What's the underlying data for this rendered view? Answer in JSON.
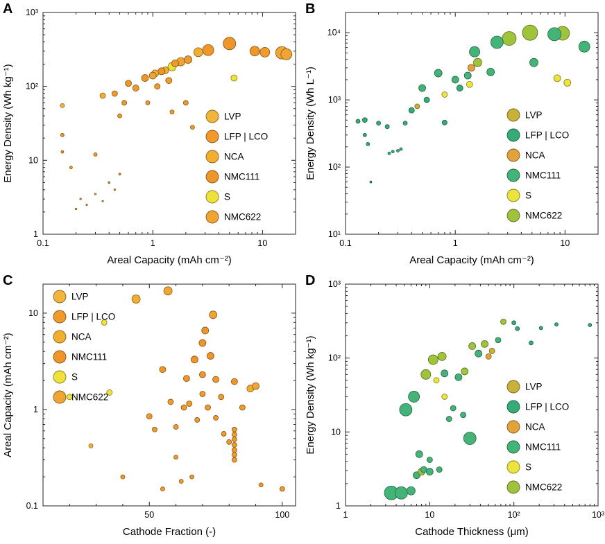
{
  "chart_data": [
    {
      "type": "scatter",
      "panel_label": "A",
      "xlabel": "Areal Capacity (mAh cm⁻²)",
      "ylabel": "Energy Density (Wh kg⁻¹)",
      "xscale": "log",
      "yscale": "log",
      "xlim": [
        0.1,
        20
      ],
      "ylim": [
        1,
        1000
      ],
      "xticks": [
        {
          "v": 0.1,
          "l": "0.1"
        },
        {
          "v": 1,
          "l": "1"
        },
        {
          "v": 10,
          "l": "10"
        }
      ],
      "yticks": [
        {
          "v": 1,
          "l": "1"
        },
        {
          "v": 10,
          "l": "10"
        },
        {
          "v": 100,
          "l": "10²"
        },
        {
          "v": 1000,
          "l": "10³"
        }
      ],
      "legend_pos": [
        296,
        158
      ],
      "series": [
        {
          "name": "LVP",
          "color": "#f2b53c",
          "points": [
            [
              0.15,
              55,
              3
            ],
            [
              1.05,
              150,
              5
            ]
          ]
        },
        {
          "name": "LFP | LCO",
          "color": "#ef9a2b",
          "points": [
            [
              0.15,
              22,
              2.5
            ],
            [
              0.15,
              13,
              2
            ],
            [
              0.18,
              8,
              2
            ],
            [
              0.3,
              12,
              2.5
            ],
            [
              0.45,
              80,
              4
            ],
            [
              0.5,
              40,
              3
            ],
            [
              0.55,
              60,
              3.5
            ],
            [
              0.7,
              95,
              4.5
            ],
            [
              0.9,
              60,
              3
            ],
            [
              1.1,
              100,
              4
            ],
            [
              1.4,
              120,
              4.5
            ],
            [
              1.5,
              45,
              3
            ],
            [
              1.6,
              205,
              5
            ],
            [
              2.0,
              60,
              3.5
            ],
            [
              2.1,
              230,
              5.5
            ],
            [
              2.3,
              28,
              3
            ],
            [
              10.5,
              290,
              7
            ],
            [
              0.2,
              2.2,
              1.2
            ],
            [
              0.22,
              3,
              1.2
            ],
            [
              0.25,
              2.5,
              1.2
            ],
            [
              0.3,
              3.5,
              1.2
            ],
            [
              0.35,
              2.8,
              1.2
            ],
            [
              0.4,
              5,
              1.4
            ],
            [
              0.45,
              4,
              1.2
            ],
            [
              0.5,
              6.5,
              1.5
            ]
          ]
        },
        {
          "name": "NCA",
          "color": "#f2ae30",
          "points": [
            [
              0.35,
              75,
              4
            ],
            [
              1.3,
              165,
              5
            ],
            [
              2.6,
              290,
              6.5
            ]
          ]
        },
        {
          "name": "NMC111",
          "color": "#ee962a",
          "points": [
            [
              0.6,
              110,
              4.5
            ],
            [
              0.85,
              130,
              5
            ],
            [
              1.2,
              160,
              5
            ],
            [
              3.2,
              310,
              8
            ],
            [
              5,
              380,
              9
            ],
            [
              8.5,
              300,
              7
            ]
          ]
        },
        {
          "name": "S",
          "color": "#f0e13a",
          "points": [
            [
              1.5,
              185,
              6
            ],
            [
              5.5,
              130,
              4.5
            ]
          ]
        },
        {
          "name": "NMC622",
          "color": "#f0a432",
          "points": [
            [
              1.0,
              140,
              5
            ],
            [
              1.8,
              215,
              6
            ],
            [
              15,
              285,
              9
            ],
            [
              16.5,
              272,
              8
            ]
          ]
        }
      ]
    },
    {
      "type": "scatter",
      "panel_label": "B",
      "xlabel": "Areal Capacity (mAh cm⁻²)",
      "ylabel": "Energy Density (Wh L⁻¹)",
      "xscale": "log",
      "yscale": "log",
      "xlim": [
        0.1,
        20
      ],
      "ylim": [
        10,
        20000
      ],
      "xticks": [
        {
          "v": 0.1,
          "l": "0.1"
        },
        {
          "v": 1,
          "l": "1"
        },
        {
          "v": 10,
          "l": "10"
        }
      ],
      "yticks": [
        {
          "v": 10,
          "l": "10¹"
        },
        {
          "v": 100,
          "l": "10²"
        },
        {
          "v": 1000,
          "l": "10³"
        },
        {
          "v": 10000,
          "l": "10⁴"
        }
      ],
      "legend_pos": [
        294,
        156
      ],
      "series": [
        {
          "name": "LVP",
          "color": "#c9b23a",
          "points": [
            [
              0.45,
              800,
              3.5
            ]
          ]
        },
        {
          "name": "LFP | LCO",
          "color": "#35ab78",
          "points": [
            [
              0.13,
              480,
              3
            ],
            [
              0.15,
              500,
              3.5
            ],
            [
              0.15,
              300,
              2.5
            ],
            [
              0.16,
              220,
              2.5
            ],
            [
              0.17,
              60,
              1.5
            ],
            [
              0.2,
              450,
              3
            ],
            [
              0.24,
              400,
              3
            ],
            [
              0.25,
              160,
              2
            ],
            [
              0.27,
              170,
              2
            ],
            [
              0.3,
              175,
              2
            ],
            [
              0.32,
              185,
              2
            ],
            [
              0.35,
              450,
              3
            ],
            [
              0.4,
              700,
              4
            ],
            [
              0.55,
              1000,
              4
            ],
            [
              0.8,
              460,
              3.5
            ],
            [
              1.1,
              1500,
              4.5
            ]
          ]
        },
        {
          "name": "NCA",
          "color": "#e2a23c",
          "points": [
            [
              1.4,
              3000,
              5
            ]
          ]
        },
        {
          "name": "NMC111",
          "color": "#43b377",
          "points": [
            [
              0.5,
              1500,
              5
            ],
            [
              0.7,
              2500,
              5.5
            ],
            [
              1.0,
              2000,
              5
            ],
            [
              1.3,
              2300,
              5
            ],
            [
              1.5,
              5200,
              7.5
            ],
            [
              2.1,
              2600,
              5.5
            ],
            [
              2.4,
              7200,
              9
            ],
            [
              5.2,
              3600,
              6
            ],
            [
              8,
              9500,
              9.5
            ],
            [
              15,
              6200,
              8
            ]
          ]
        },
        {
          "name": "S",
          "color": "#ece43c",
          "points": [
            [
              0.8,
              1200,
              4
            ],
            [
              1.35,
              1700,
              4.5
            ],
            [
              8.5,
              2100,
              5
            ],
            [
              10.5,
              1800,
              5
            ]
          ]
        },
        {
          "name": "NMC622",
          "color": "#9fc43c",
          "points": [
            [
              1.6,
              3600,
              6
            ],
            [
              3.1,
              8200,
              10
            ],
            [
              4.8,
              10000,
              11
            ],
            [
              9.5,
              9800,
              10
            ]
          ]
        }
      ]
    },
    {
      "type": "scatter",
      "panel_label": "C",
      "xlabel": "Cathode Fraction (-)",
      "ylabel": "Areal Capacity (mAh cm⁻²)",
      "xscale": "linear",
      "yscale": "log",
      "xlim": [
        10,
        105
      ],
      "ylim": [
        0.1,
        20
      ],
      "xticks": [
        {
          "v": 50,
          "l": "50"
        },
        {
          "v": 100,
          "l": "100"
        }
      ],
      "xminor": [
        20,
        30,
        40,
        60,
        70,
        80,
        90
      ],
      "yticks": [
        {
          "v": 0.1,
          "l": "0.1"
        },
        {
          "v": 1,
          "l": "1"
        },
        {
          "v": 10,
          "l": "10"
        }
      ],
      "legend_pos": [
        76,
        26
      ],
      "series": [
        {
          "name": "LVP",
          "color": "#f2b53c",
          "points": [
            [
              28,
              0.42,
              3
            ]
          ]
        },
        {
          "name": "LFP | LCO",
          "color": "#ef9a2b",
          "points": [
            [
              40,
              0.2,
              3
            ],
            [
              50,
              0.85,
              4
            ],
            [
              52,
              0.62,
              3.5
            ],
            [
              55,
              0.15,
              3
            ],
            [
              58,
              1.2,
              4
            ],
            [
              60,
              0.66,
              3.5
            ],
            [
              60,
              0.32,
              3
            ],
            [
              62,
              0.18,
              3
            ],
            [
              63,
              1.05,
              4
            ],
            [
              65,
              1.15,
              4
            ],
            [
              66,
              0.2,
              3
            ],
            [
              68,
              0.78,
              3.5
            ],
            [
              70,
              1.45,
              4
            ],
            [
              72,
              1.05,
              4
            ],
            [
              75,
              0.82,
              3.5
            ],
            [
              77,
              1.35,
              4
            ],
            [
              78,
              0.56,
              3.5
            ],
            [
              80,
              0.46,
              3.5
            ],
            [
              82,
              0.3,
              3.5
            ],
            [
              82,
              0.34,
              3.5
            ],
            [
              82,
              0.38,
              3.5
            ],
            [
              82,
              0.43,
              3.5
            ],
            [
              82,
              0.49,
              3.5
            ],
            [
              82,
              0.55,
              3.5
            ],
            [
              82,
              0.62,
              3.5
            ],
            [
              85,
              1.05,
              4
            ],
            [
              92,
              0.165,
              3
            ],
            [
              100,
              0.15,
              3.5
            ]
          ]
        },
        {
          "name": "NCA",
          "color": "#f2ae30",
          "points": [
            [
              45,
              14,
              6
            ],
            [
              88,
              1.65,
              5
            ]
          ]
        },
        {
          "name": "NMC111",
          "color": "#ee962a",
          "points": [
            [
              55,
              2.6,
              4.5
            ],
            [
              64,
              2.1,
              4.5
            ],
            [
              67,
              3.3,
              5
            ],
            [
              70,
              4.9,
              5
            ],
            [
              71,
              6.6,
              5
            ],
            [
              73,
              3.6,
              5
            ],
            [
              70,
              2.3,
              4.5
            ],
            [
              75,
              2.05,
              4.5
            ],
            [
              82,
              1.95,
              4.5
            ]
          ]
        },
        {
          "name": "S",
          "color": "#f0e13a",
          "points": [
            [
              20,
              1.35,
              4
            ],
            [
              35,
              1.5,
              4
            ],
            [
              33,
              8,
              4
            ]
          ]
        },
        {
          "name": "NMC622",
          "color": "#f0a432",
          "points": [
            [
              57,
              17,
              6
            ],
            [
              74,
              9.6,
              5.5
            ],
            [
              90,
              1.75,
              5
            ]
          ]
        }
      ]
    },
    {
      "type": "scatter",
      "panel_label": "D",
      "xlabel": "Cathode Thickness (μm)",
      "ylabel": "Energy Density (Wh kg⁻¹)",
      "xscale": "log",
      "yscale": "log",
      "xlim": [
        1,
        1000
      ],
      "ylim": [
        1,
        1000
      ],
      "xticks": [
        {
          "v": 1,
          "l": "1"
        },
        {
          "v": 10,
          "l": "10"
        },
        {
          "v": 100,
          "l": "10²"
        },
        {
          "v": 1000,
          "l": "10³"
        }
      ],
      "yticks": [
        {
          "v": 1,
          "l": "1"
        },
        {
          "v": 10,
          "l": "10"
        },
        {
          "v": 100,
          "l": "10²"
        },
        {
          "v": 1000,
          "l": "10³"
        }
      ],
      "legend_pos": [
        294,
        156
      ],
      "series": [
        {
          "name": "LVP",
          "color": "#c9b23a",
          "points": [
            [
              55,
              125,
              4
            ]
          ]
        },
        {
          "name": "LFP | LCO",
          "color": "#35ab78",
          "points": [
            [
              100,
              300,
              3
            ],
            [
              110,
              250,
              3
            ],
            [
              160,
              160,
              3
            ],
            [
              210,
              255,
              2.5
            ],
            [
              320,
              285,
              2.5
            ],
            [
              800,
              280,
              2.5
            ]
          ]
        },
        {
          "name": "NCA",
          "color": "#e2a23c",
          "points": [
            [
              50,
              105,
              4
            ]
          ]
        },
        {
          "name": "NMC111",
          "color": "#43b377",
          "points": [
            [
              3.5,
              1.5,
              10
            ],
            [
              4.6,
              1.5,
              9
            ],
            [
              5.2,
              20,
              9
            ],
            [
              6,
              1.6,
              6
            ],
            [
              6.5,
              30,
              8
            ],
            [
              7,
              2.6,
              5
            ],
            [
              7.5,
              5,
              5
            ],
            [
              8.5,
              3.1,
              4.5
            ],
            [
              10,
              2.9,
              5
            ],
            [
              10,
              4.2,
              4
            ],
            [
              13,
              3.1,
              4
            ],
            [
              15,
              62,
              5
            ],
            [
              17,
              15,
              4
            ],
            [
              19,
              21,
              4
            ],
            [
              22,
              55,
              5
            ],
            [
              25,
              17,
              4
            ],
            [
              30,
              8.2,
              9
            ],
            [
              38,
              115,
              5
            ],
            [
              65,
              175,
              4
            ]
          ]
        },
        {
          "name": "S",
          "color": "#ece43c",
          "points": [
            [
              15,
              30,
              4
            ],
            [
              12,
              50,
              4
            ]
          ]
        },
        {
          "name": "NMC622",
          "color": "#9fc43c",
          "points": [
            [
              8,
              2.9,
              5
            ],
            [
              9,
              60,
              7
            ],
            [
              11,
              95,
              7
            ],
            [
              14,
              105,
              6
            ],
            [
              26,
              66,
              5
            ],
            [
              32,
              145,
              5
            ],
            [
              45,
              155,
              5
            ],
            [
              75,
              310,
              4
            ]
          ]
        }
      ]
    }
  ]
}
